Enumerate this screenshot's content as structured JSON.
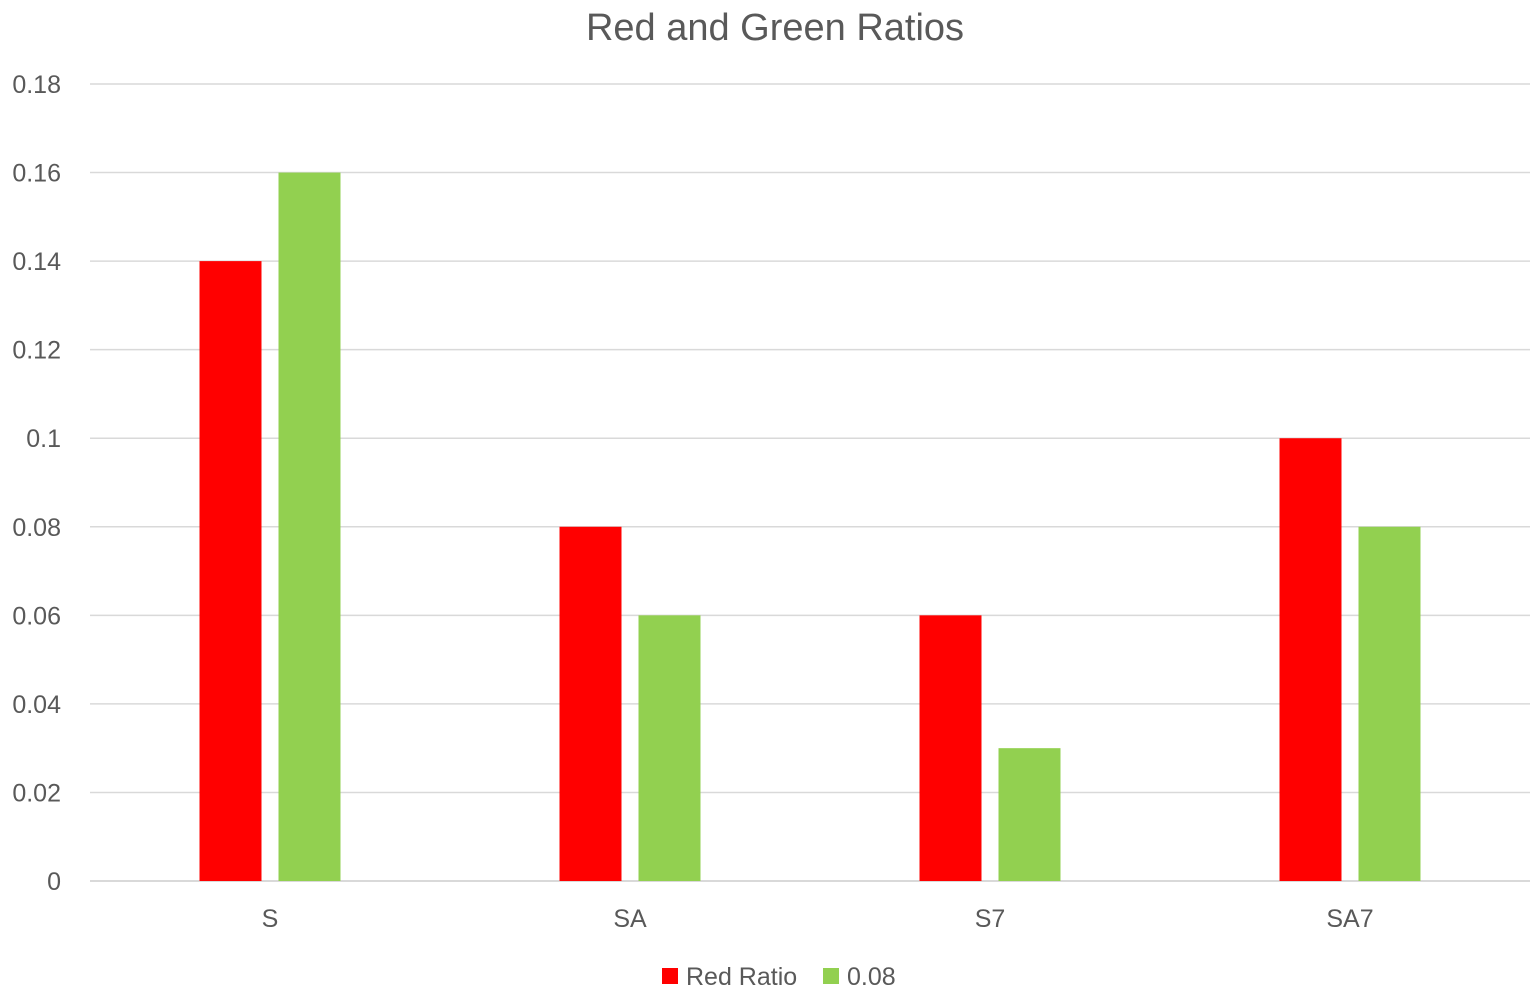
{
  "chart_data": {
    "type": "bar",
    "title": "Red and Green Ratios",
    "xlabel": "",
    "ylabel": "",
    "categories": [
      "S",
      "SA",
      "S7",
      "SA7"
    ],
    "series": [
      {
        "name": "Red Ratio",
        "color": "#ff0000",
        "values": [
          0.14,
          0.08,
          0.06,
          0.1
        ]
      },
      {
        "name": "0.08",
        "color": "#92d050",
        "values": [
          0.16,
          0.06,
          0.03,
          0.08
        ]
      }
    ],
    "ylim": [
      0,
      0.18
    ],
    "yticks": [
      "0",
      "0.02",
      "0.04",
      "0.06",
      "0.08",
      "0.1",
      "0.12",
      "0.14",
      "0.16",
      "0.18"
    ],
    "grid": true,
    "legend": "bottom-center"
  }
}
